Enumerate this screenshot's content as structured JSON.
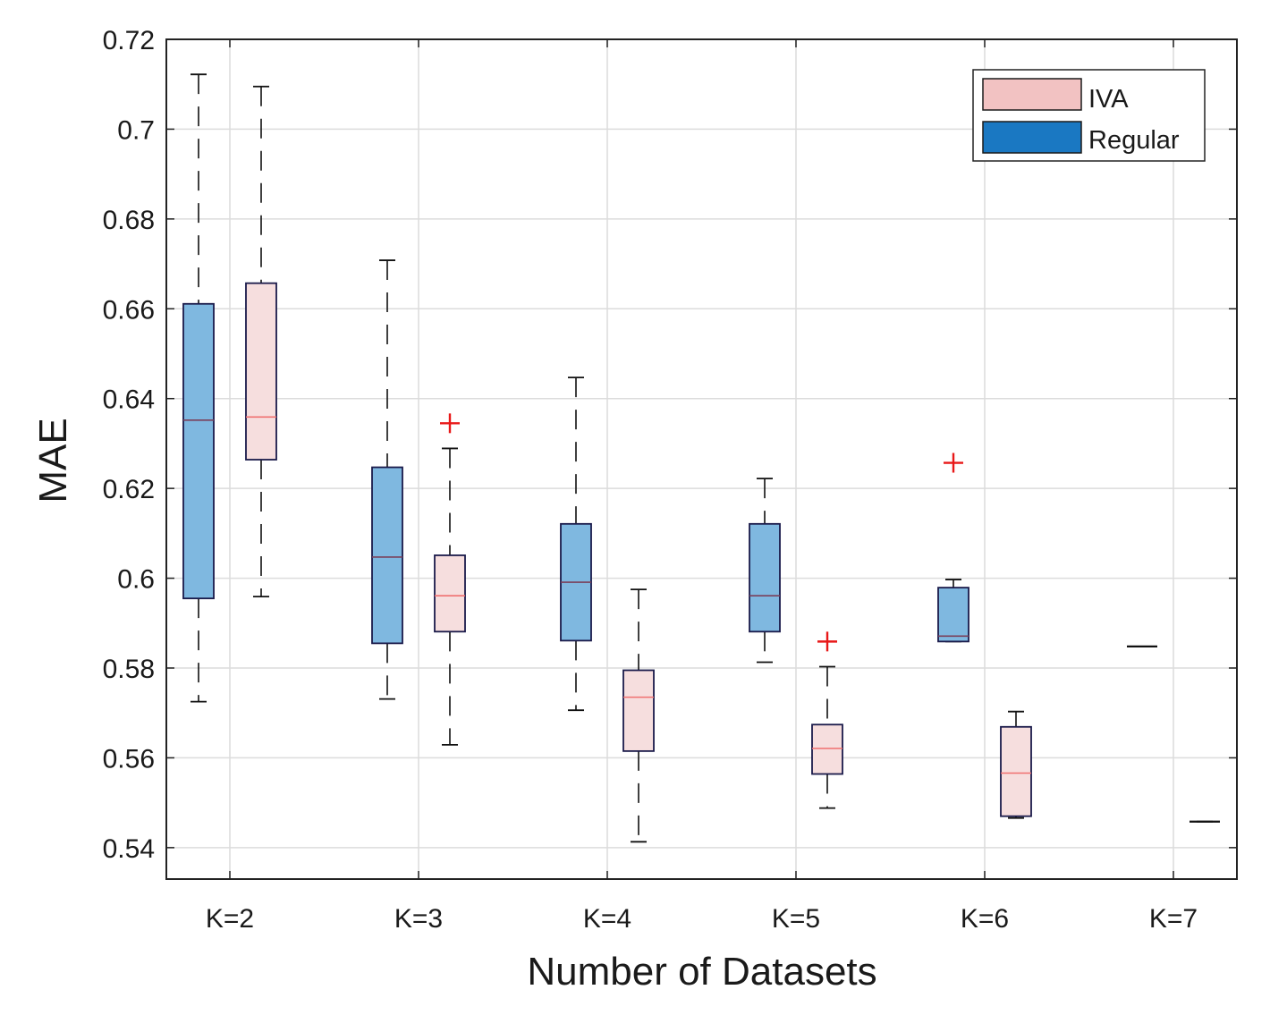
{
  "chart_data": {
    "type": "boxplot",
    "xlabel": "Number of Datasets",
    "ylabel": "MAE",
    "ylim": [
      0.533,
      0.72
    ],
    "yticks": [
      0.54,
      0.56,
      0.58,
      0.6,
      0.62,
      0.64,
      0.66,
      0.68,
      0.7,
      0.72
    ],
    "ytick_labels": [
      "0.54",
      "0.56",
      "0.58",
      "0.6",
      "0.62",
      "0.64",
      "0.66",
      "0.68",
      "0.7",
      "0.72"
    ],
    "categories": [
      "K=2",
      "K=3",
      "K=4",
      "K=5",
      "K=6",
      "K=7"
    ],
    "grid": true,
    "legend_position": "top-right",
    "series": [
      {
        "name": "Regular",
        "color": "#7fb8e0",
        "edge_color": "#1a1a4a",
        "median_color": "#7a3f5a",
        "legend_color": "#1a78c2",
        "boxes": [
          {
            "category": "K=2",
            "whisker_low": 0.5725,
            "q1": 0.5955,
            "median": 0.6352,
            "q3": 0.6611,
            "whisker_high": 0.7122,
            "outliers": []
          },
          {
            "category": "K=3",
            "whisker_low": 0.5731,
            "q1": 0.5855,
            "median": 0.6047,
            "q3": 0.6247,
            "whisker_high": 0.6708,
            "outliers": []
          },
          {
            "category": "K=4",
            "whisker_low": 0.5706,
            "q1": 0.5861,
            "median": 0.5991,
            "q3": 0.6121,
            "whisker_high": 0.6447,
            "outliers": []
          },
          {
            "category": "K=5",
            "whisker_low": 0.5813,
            "q1": 0.5881,
            "median": 0.5961,
            "q3": 0.6121,
            "whisker_high": 0.6222,
            "outliers": []
          },
          {
            "category": "K=6",
            "whisker_low": 0.5859,
            "q1": 0.5859,
            "median": 0.5871,
            "q3": 0.5979,
            "whisker_high": 0.5997,
            "outliers": [
              0.6257
            ]
          },
          {
            "category": "K=7",
            "whisker_low": 0.5848,
            "q1": 0.5848,
            "median": 0.5848,
            "q3": 0.5848,
            "whisker_high": 0.5848,
            "outliers": []
          }
        ]
      },
      {
        "name": "IVA",
        "color": "#f6dede",
        "edge_color": "#1a1a4a",
        "median_color": "#f07070",
        "legend_color": "#f2c2c2",
        "boxes": [
          {
            "category": "K=2",
            "whisker_low": 0.5959,
            "q1": 0.6264,
            "median": 0.6359,
            "q3": 0.6657,
            "whisker_high": 0.7095,
            "outliers": []
          },
          {
            "category": "K=3",
            "whisker_low": 0.5629,
            "q1": 0.5881,
            "median": 0.5961,
            "q3": 0.6051,
            "whisker_high": 0.6289,
            "outliers": [
              0.6345
            ]
          },
          {
            "category": "K=4",
            "whisker_low": 0.5413,
            "q1": 0.5615,
            "median": 0.5735,
            "q3": 0.5795,
            "whisker_high": 0.5975,
            "outliers": []
          },
          {
            "category": "K=5",
            "whisker_low": 0.5488,
            "q1": 0.5564,
            "median": 0.5621,
            "q3": 0.5674,
            "whisker_high": 0.5803,
            "outliers": [
              0.5859
            ]
          },
          {
            "category": "K=6",
            "whisker_low": 0.5466,
            "q1": 0.547,
            "median": 0.5566,
            "q3": 0.5669,
            "whisker_high": 0.5703,
            "outliers": []
          },
          {
            "category": "K=7",
            "whisker_low": 0.5458,
            "q1": 0.5458,
            "median": 0.5458,
            "q3": 0.5458,
            "whisker_high": 0.5458,
            "outliers": []
          }
        ]
      }
    ],
    "legend_order": [
      "IVA",
      "Regular"
    ],
    "outlier_marker": "+",
    "outlier_color": "#e81818"
  }
}
